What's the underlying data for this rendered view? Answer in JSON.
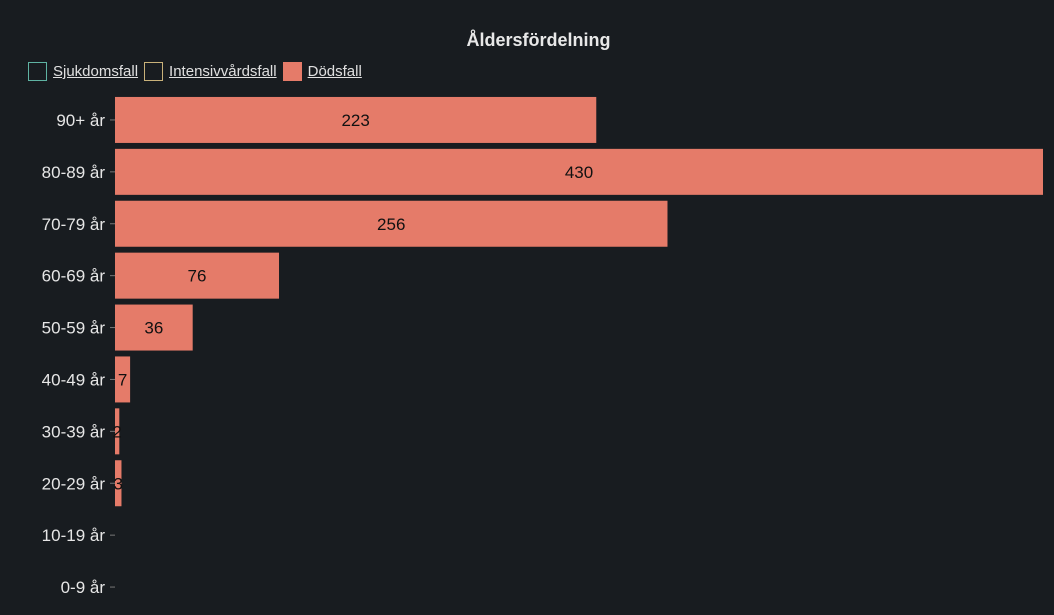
{
  "chart_data": {
    "type": "bar",
    "orientation": "horizontal",
    "title": "Åldersfördelning",
    "categories": [
      "90+ år",
      "80-89 år",
      "70-79 år",
      "60-69 år",
      "50-59 år",
      "40-49 år",
      "30-39 år",
      "20-29 år",
      "10-19 år",
      "0-9 år"
    ],
    "series": [
      {
        "name": "Sjukdomsfall",
        "values": [
          null,
          null,
          null,
          null,
          null,
          null,
          null,
          null,
          null,
          null
        ],
        "color": "#5fb3a3",
        "hidden": true
      },
      {
        "name": "Intensivvårdsfall",
        "values": [
          null,
          null,
          null,
          null,
          null,
          null,
          null,
          null,
          null,
          null
        ],
        "color": "#c9b27a",
        "hidden": true
      },
      {
        "name": "Dödsfall",
        "values": [
          223,
          430,
          256,
          76,
          36,
          7,
          2,
          3,
          0,
          0
        ],
        "color": "#e57b69",
        "hidden": false
      }
    ],
    "xlim": [
      0,
      430
    ],
    "grid": false,
    "legend_position": "top-left",
    "data_labels": true
  }
}
